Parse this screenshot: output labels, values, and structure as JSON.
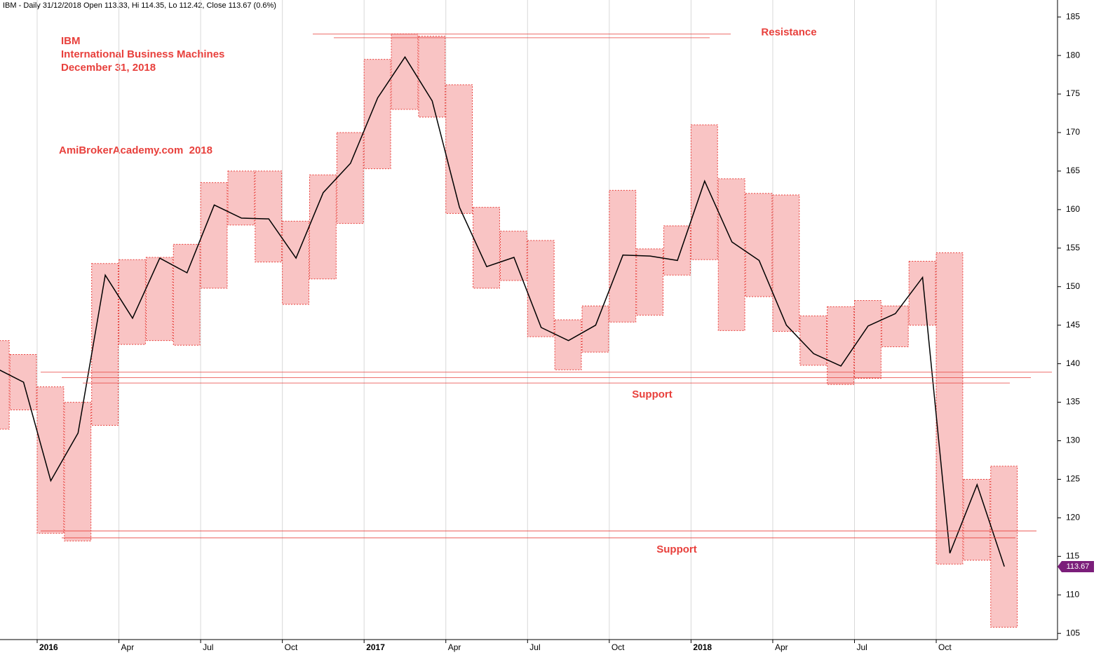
{
  "chart_data": {
    "type": "range-box",
    "title": "IBM - Daily 31/12/2018 Open 113.33, Hi 114.35, Lo 112.42, Close 113.67 (0.6%)",
    "annotations": [
      "IBM",
      "International Business Machines",
      "December 31, 2018",
      "AmiBrokerAcademy.com  2018"
    ],
    "categories": [
      null,
      null,
      "2016",
      null,
      null,
      "Apr",
      null,
      null,
      "Jul",
      null,
      null,
      "Oct",
      null,
      null,
      "2017",
      null,
      null,
      "Apr",
      null,
      null,
      "Jul",
      null,
      null,
      "Oct",
      null,
      null,
      "2018",
      null,
      null,
      "Apr",
      null,
      null,
      "Jul",
      null,
      null,
      "Oct",
      null,
      null
    ],
    "highs": [
      143,
      141.2,
      137,
      135,
      153,
      153.5,
      153.8,
      155.5,
      163.5,
      165,
      165,
      158.5,
      164.5,
      170,
      179.5,
      182.8,
      182.5,
      176.2,
      160.3,
      157.2,
      156,
      145.7,
      147.5,
      162.5,
      154.9,
      157.9,
      171,
      164,
      162.1,
      161.9,
      146.2,
      147.4,
      148.2,
      147.5,
      153.3,
      154.4,
      125,
      126.7
    ],
    "lows": [
      131.5,
      134,
      118,
      117,
      132,
      142.5,
      143,
      142.4,
      149.8,
      158,
      153.2,
      147.7,
      151,
      158.2,
      165.3,
      173,
      172,
      159.5,
      149.8,
      150.8,
      143.5,
      139.2,
      141.5,
      145.4,
      146.3,
      151.5,
      153.5,
      144.3,
      148.7,
      144.2,
      139.8,
      137.3,
      138.1,
      142.2,
      145,
      114,
      114.5,
      105.8
    ],
    "closes": [
      139.4,
      137.6,
      124.8,
      131,
      151.5,
      145.9,
      153.7,
      151.8,
      160.6,
      158.9,
      158.8,
      153.7,
      162.2,
      166,
      174.5,
      179.8,
      174.1,
      160.3,
      152.6,
      153.8,
      144.7,
      143,
      145,
      154.1,
      153.97,
      153.4,
      163.7,
      155.8,
      153.4,
      145,
      141.3,
      139.7,
      144.9,
      146.5,
      151.2,
      115.4,
      124.3,
      113.67
    ],
    "levels": [
      {
        "label": "Resistance",
        "values": [
          182.8,
          182.3
        ]
      },
      {
        "label": "Support",
        "values": [
          138.9,
          138.2,
          137.5
        ]
      },
      {
        "label": "Support",
        "values": [
          118.3,
          117.4
        ]
      }
    ],
    "box_color": "#f9c4c4",
    "line_color": "#000000",
    "level_color": "#e8403c",
    "last_color": "#7b1e7a",
    "ylim": [
      104.2,
      187.2
    ],
    "yticks": [
      105,
      110,
      115,
      120,
      125,
      130,
      135,
      140,
      145,
      150,
      155,
      160,
      165,
      170,
      175,
      180,
      185
    ],
    "grid": true
  }
}
